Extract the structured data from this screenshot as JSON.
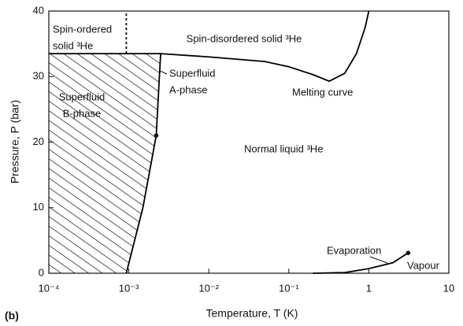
{
  "chart_data": {
    "type": "line",
    "xlabel": "Temperature, T (K)",
    "ylabel": "Pressure, P (bar)",
    "panel_label": "(b)",
    "xscale": "log",
    "xlim": [
      0.0001,
      10
    ],
    "xticks": [
      {
        "value": 0.0001,
        "label": "10⁻⁴"
      },
      {
        "value": 0.001,
        "label": "10⁻³"
      },
      {
        "value": 0.01,
        "label": "10⁻²"
      },
      {
        "value": 0.1,
        "label": "10⁻¹"
      },
      1,
      10
    ],
    "ylim": [
      0,
      40
    ],
    "yticks": [
      0,
      10,
      20,
      30,
      40
    ],
    "series": [
      {
        "color": "#000000",
        "x": [
          0.0001,
          0.001,
          0.0025,
          0.01,
          0.05,
          0.1,
          0.2,
          0.32,
          0.5,
          0.7,
          0.9,
          1.0
        ],
        "values": [
          33.5,
          33.5,
          33.5,
          33.0,
          32.3,
          31.5,
          30.3,
          29.3,
          30.5,
          33.5,
          37.5,
          40
        ]
      },
      {
        "color": "#000000",
        "x": [
          0.2,
          0.5,
          1,
          2,
          3.1
        ],
        "values": [
          0,
          0.1,
          0.7,
          1.6,
          3.1
        ]
      },
      {
        "color": "#000000",
        "x": [
          0.00093,
          0.0015,
          0.0022,
          0.0025
        ],
        "values": [
          0,
          10,
          21,
          33.5
        ]
      },
      {
        "color": "#000000",
        "dash": true,
        "x": [
          0.00093,
          0.00093
        ],
        "values": [
          33.5,
          40
        ]
      }
    ],
    "dots": {
      "x": [
        0.0022,
        3.1
      ],
      "values": [
        21,
        3.1
      ]
    },
    "annotations": [
      [
        "Spin-ordered",
        "solid ³He"
      ],
      [
        "Spin-disordered solid ³He"
      ],
      [
        "Superfluid",
        "A-phase"
      ],
      [
        "Superfluid",
        "B-phase"
      ],
      [
        "Melting curve"
      ],
      [
        "Normal liquid ³He"
      ],
      [
        "Evaporation"
      ],
      [
        "Vapour"
      ]
    ]
  }
}
